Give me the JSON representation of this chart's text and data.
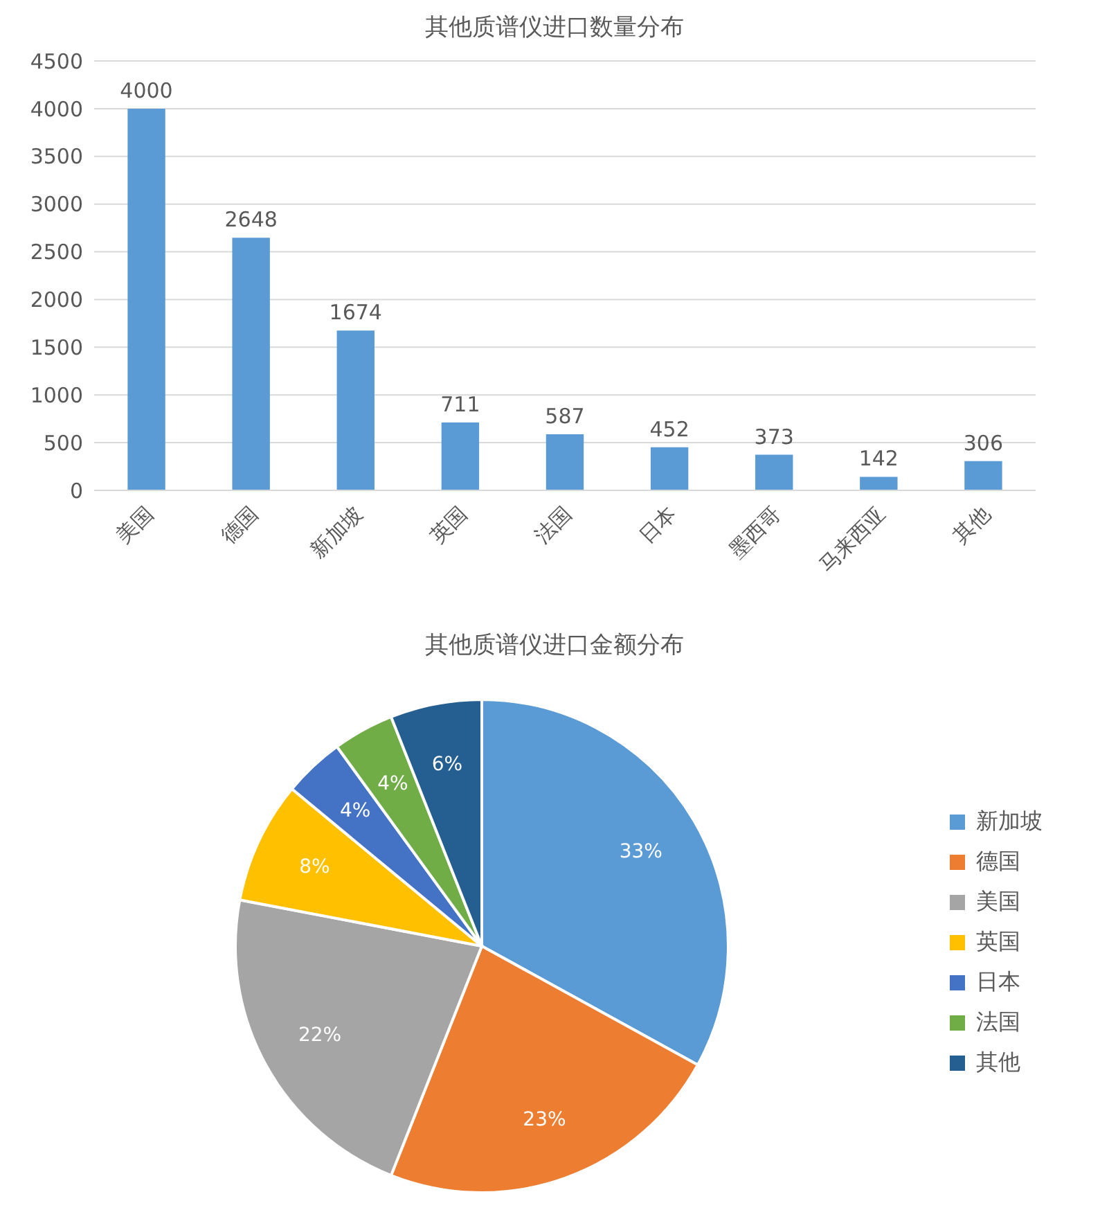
{
  "chart_data": [
    {
      "type": "bar",
      "title": "其他质谱仪进口数量分布",
      "categories": [
        "美国",
        "德国",
        "新加坡",
        "英国",
        "法国",
        "日本",
        "墨西哥",
        "马来西亚",
        "其他"
      ],
      "values": [
        4000,
        2648,
        1674,
        711,
        587,
        452,
        373,
        142,
        306
      ],
      "color": "#5b9bd5",
      "ylim": [
        0,
        4500
      ],
      "yticks": [
        0,
        500,
        1000,
        1500,
        2000,
        2500,
        3000,
        3500,
        4000,
        4500
      ],
      "grid": "y",
      "data_labels": true,
      "legend": false
    },
    {
      "type": "pie",
      "title": "其他质谱仪进口金额分布",
      "categories": [
        "新加坡",
        "德国",
        "美国",
        "英国",
        "日本",
        "法国",
        "其他"
      ],
      "values": [
        33,
        23,
        22,
        8,
        4,
        4,
        6
      ],
      "value_labels": [
        "33%",
        "23%",
        "22%",
        "8%",
        "4%",
        "4%",
        "6%"
      ],
      "colors": [
        "#5b9bd5",
        "#ed7d31",
        "#a5a5a5",
        "#ffc000",
        "#4472c4",
        "#70ad47",
        "#255e91"
      ],
      "legend": "right"
    }
  ]
}
